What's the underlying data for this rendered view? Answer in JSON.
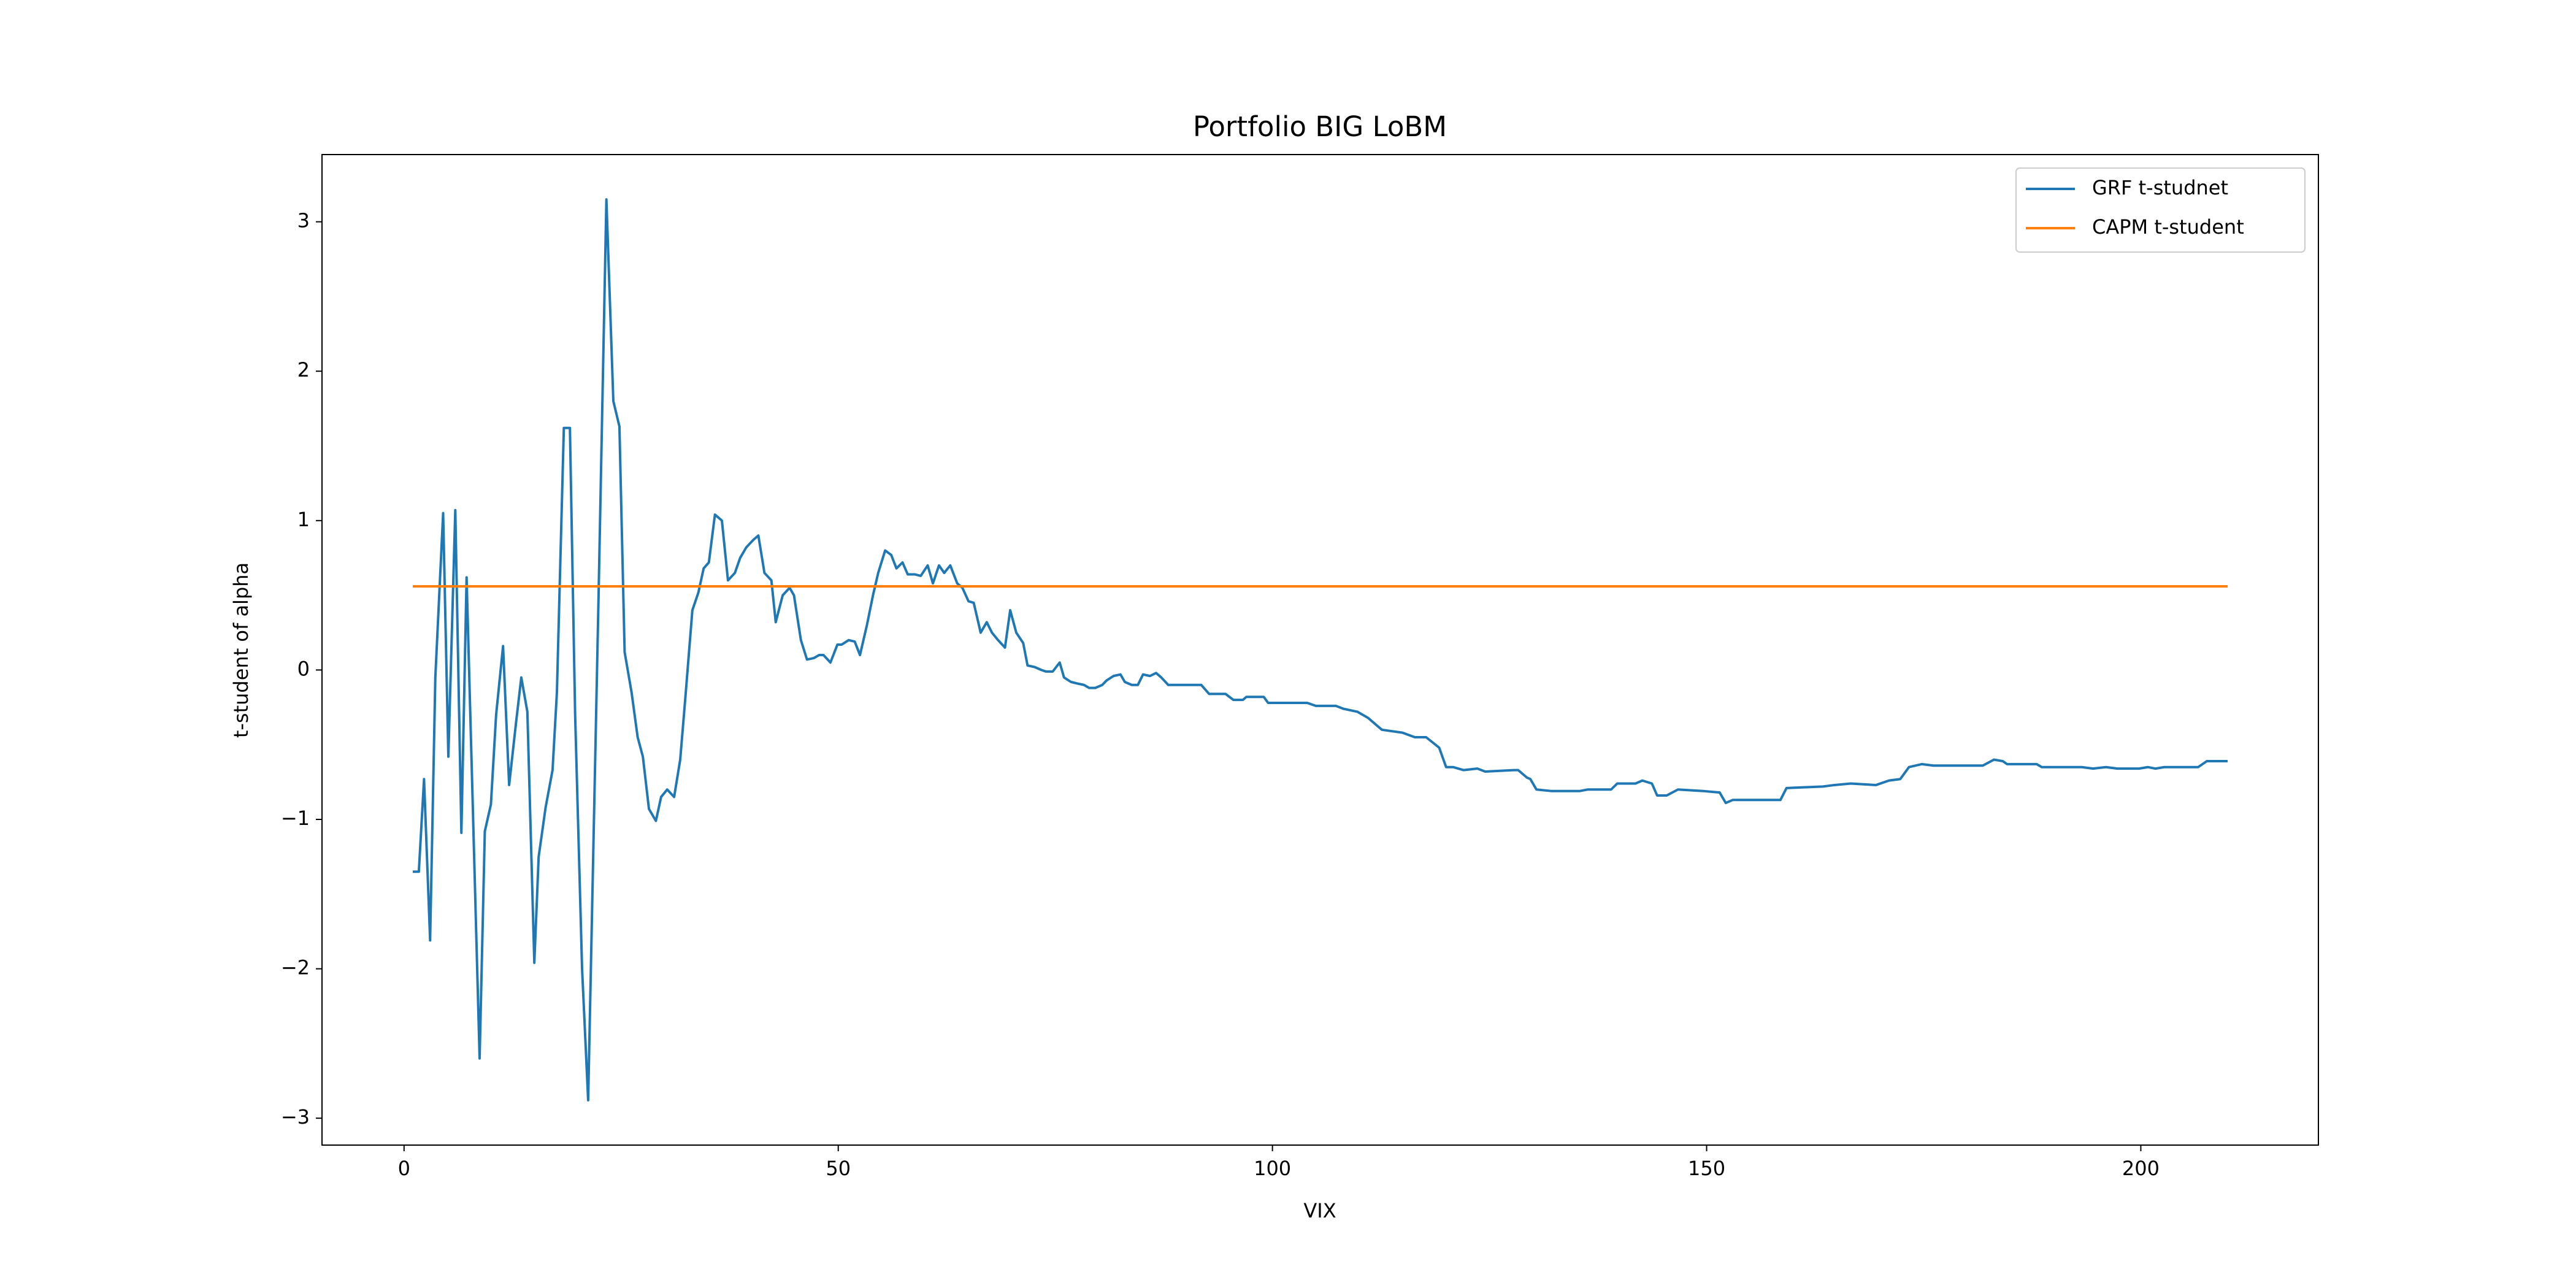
{
  "chart_data": {
    "type": "line",
    "title": "Portfolio BIG LoBM",
    "x_label": "VIX",
    "y_label": "t-student of alpha",
    "xlim": [
      -9.45,
      220.45
    ],
    "ylim": [
      -3.18,
      3.45
    ],
    "xticks": [
      0,
      50,
      100,
      150,
      200
    ],
    "yticks": [
      {
        "value": -3,
        "label": "−3"
      },
      {
        "value": -2,
        "label": "−2"
      },
      {
        "value": -1,
        "label": "−1"
      },
      0,
      1,
      2,
      3
    ],
    "legend": "upper right",
    "series": [
      {
        "name": "GRF t-studnet",
        "color": "#1f77b4",
        "x": [
          1.0,
          1.7,
          2.3,
          3.0,
          3.6,
          4.5,
          5.1,
          5.9,
          6.6,
          7.2,
          8.7,
          9.3,
          10.0,
          10.6,
          11.4,
          12.1,
          12.9,
          13.5,
          14.2,
          15.0,
          15.5,
          16.3,
          17.1,
          17.6,
          18.4,
          19.1,
          19.7,
          20.5,
          21.2,
          22.4,
          23.3,
          24.1,
          24.8,
          25.4,
          26.2,
          26.9,
          27.5,
          28.2,
          29.0,
          29.6,
          30.3,
          31.1,
          31.8,
          32.4,
          33.2,
          33.9,
          34.5,
          35.1,
          35.8,
          36.6,
          37.3,
          38.1,
          38.7,
          39.4,
          40.2,
          40.8,
          41.5,
          42.3,
          42.8,
          43.6,
          44.4,
          44.9,
          45.7,
          46.4,
          47.2,
          47.8,
          48.3,
          49.1,
          49.9,
          50.4,
          51.2,
          51.9,
          52.5,
          53.3,
          54.0,
          54.6,
          55.4,
          56.1,
          56.7,
          57.4,
          58.0,
          58.8,
          59.5,
          60.3,
          60.9,
          61.6,
          62.2,
          62.9,
          63.7,
          64.3,
          65.0,
          65.6,
          66.4,
          67.1,
          67.7,
          68.4,
          69.2,
          69.8,
          70.5,
          71.3,
          71.8,
          72.6,
          73.4,
          73.9,
          74.7,
          75.5,
          76.0,
          76.8,
          77.5,
          78.3,
          78.9,
          79.6,
          80.4,
          80.9,
          81.7,
          82.5,
          83.0,
          83.8,
          84.5,
          85.1,
          85.9,
          86.6,
          87.2,
          88.0,
          91.8,
          92.7,
          94.6,
          95.5,
          96.6,
          97.0,
          99.0,
          99.5,
          104.0,
          105.0,
          107.3,
          108.2,
          109.8,
          111.0,
          112.6,
          115.0,
          116.4,
          117.7,
          119.2,
          120.0,
          120.8,
          122.0,
          123.6,
          124.5,
          127.8,
          128.3,
          129.3,
          129.7,
          130.4,
          132.1,
          135.4,
          136.3,
          139.0,
          139.7,
          141.8,
          142.6,
          143.7,
          144.3,
          145.4,
          146.7,
          149.6,
          151.5,
          152.2,
          153.0,
          158.5,
          159.2,
          163.4,
          164.7,
          166.6,
          169.5,
          171.0,
          172.3,
          173.3,
          174.8,
          176.1,
          181.8,
          183.1,
          184.1,
          184.6,
          188.0,
          188.6,
          193.2,
          194.5,
          196.0,
          197.3,
          199.8,
          200.8,
          201.7,
          202.7,
          206.6,
          207.6,
          210.0
        ],
        "values": [
          -1.35,
          -1.35,
          -0.73,
          -1.81,
          -0.05,
          1.05,
          -0.58,
          1.07,
          -1.09,
          0.62,
          -2.6,
          -1.08,
          -0.9,
          -0.3,
          0.16,
          -0.77,
          -0.35,
          -0.05,
          -0.28,
          -1.96,
          -1.25,
          -0.92,
          -0.67,
          -0.15,
          1.62,
          1.62,
          -0.3,
          -2.0,
          -2.88,
          0.5,
          3.15,
          1.8,
          1.63,
          0.12,
          -0.15,
          -0.45,
          -0.58,
          -0.93,
          -1.01,
          -0.85,
          -0.8,
          -0.85,
          -0.6,
          -0.18,
          0.4,
          0.52,
          0.68,
          0.72,
          1.04,
          1.0,
          0.6,
          0.65,
          0.75,
          0.82,
          0.87,
          0.9,
          0.65,
          0.6,
          0.32,
          0.5,
          0.55,
          0.5,
          0.2,
          0.07,
          0.08,
          0.1,
          0.1,
          0.05,
          0.17,
          0.17,
          0.2,
          0.19,
          0.1,
          0.3,
          0.5,
          0.65,
          0.8,
          0.77,
          0.68,
          0.72,
          0.64,
          0.64,
          0.63,
          0.7,
          0.58,
          0.7,
          0.65,
          0.7,
          0.58,
          0.55,
          0.46,
          0.45,
          0.25,
          0.32,
          0.25,
          0.2,
          0.15,
          0.4,
          0.25,
          0.18,
          0.03,
          0.02,
          0.0,
          -0.01,
          -0.01,
          0.05,
          -0.05,
          -0.08,
          -0.09,
          -0.1,
          -0.12,
          -0.12,
          -0.1,
          -0.07,
          -0.04,
          -0.03,
          -0.08,
          -0.1,
          -0.1,
          -0.03,
          -0.04,
          -0.02,
          -0.05,
          -0.1,
          -0.1,
          -0.16,
          -0.16,
          -0.2,
          -0.2,
          -0.18,
          -0.18,
          -0.22,
          -0.22,
          -0.24,
          -0.24,
          -0.26,
          -0.28,
          -0.32,
          -0.4,
          -0.42,
          -0.45,
          -0.45,
          -0.52,
          -0.65,
          -0.65,
          -0.67,
          -0.66,
          -0.68,
          -0.67,
          -0.67,
          -0.72,
          -0.73,
          -0.8,
          -0.81,
          -0.81,
          -0.8,
          -0.8,
          -0.76,
          -0.76,
          -0.74,
          -0.76,
          -0.84,
          -0.84,
          -0.8,
          -0.81,
          -0.82,
          -0.89,
          -0.87,
          -0.87,
          -0.79,
          -0.78,
          -0.77,
          -0.76,
          -0.77,
          -0.74,
          -0.73,
          -0.65,
          -0.63,
          -0.64,
          -0.64,
          -0.6,
          -0.61,
          -0.63,
          -0.63,
          -0.65,
          -0.65,
          -0.66,
          -0.65,
          -0.66,
          -0.66,
          -0.65,
          -0.66,
          -0.65,
          -0.65,
          -0.61,
          -0.61
        ]
      },
      {
        "name": "CAPM t-student",
        "color": "#ff7f0e",
        "x": [
          1,
          210
        ],
        "values": [
          0.56,
          0.56
        ]
      }
    ]
  }
}
